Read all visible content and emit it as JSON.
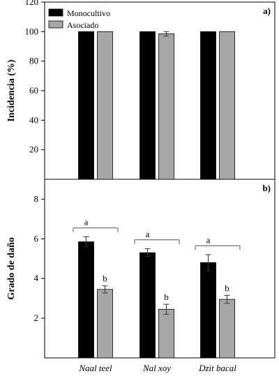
{
  "chart_data": [
    {
      "panel_label": "a)",
      "type": "bar",
      "ylabel": "Incidencia (%)",
      "ylim": [
        0,
        120
      ],
      "yticks": [
        20,
        40,
        60,
        80,
        100,
        120
      ],
      "categories": [
        "Naal teel",
        "Nal xoy",
        "Dzit bacal"
      ],
      "legend": {
        "placement": "top-left"
      },
      "series": [
        {
          "name": "Monocultivo",
          "color": "#000000",
          "values": [
            100,
            100,
            100
          ],
          "errors": [
            0,
            0,
            0
          ]
        },
        {
          "name": "Asociado",
          "color": "#a6a6a6",
          "values": [
            100,
            98.5,
            100
          ],
          "errors": [
            0,
            1.5,
            0
          ]
        }
      ]
    },
    {
      "panel_label": "b)",
      "type": "bar",
      "ylabel": "Grado de daño",
      "ylim": [
        0,
        9
      ],
      "yticks": [
        2,
        4,
        6,
        8
      ],
      "categories": [
        "Naal teel",
        "Nal xoy",
        "Dzit bacal"
      ],
      "series": [
        {
          "name": "Monocultivo",
          "color": "#000000",
          "values": [
            5.85,
            5.3,
            4.8
          ],
          "errors": [
            0.25,
            0.2,
            0.4
          ]
        },
        {
          "name": "Asociado",
          "color": "#a6a6a6",
          "values": [
            3.45,
            2.45,
            2.95
          ],
          "errors": [
            0.18,
            0.25,
            0.2
          ]
        }
      ],
      "significance": [
        {
          "group": 0,
          "letters": [
            "a",
            "b"
          ]
        },
        {
          "group": 1,
          "letters": [
            "a",
            "b"
          ]
        },
        {
          "group": 2,
          "letters": [
            "a",
            "b"
          ]
        }
      ]
    }
  ]
}
